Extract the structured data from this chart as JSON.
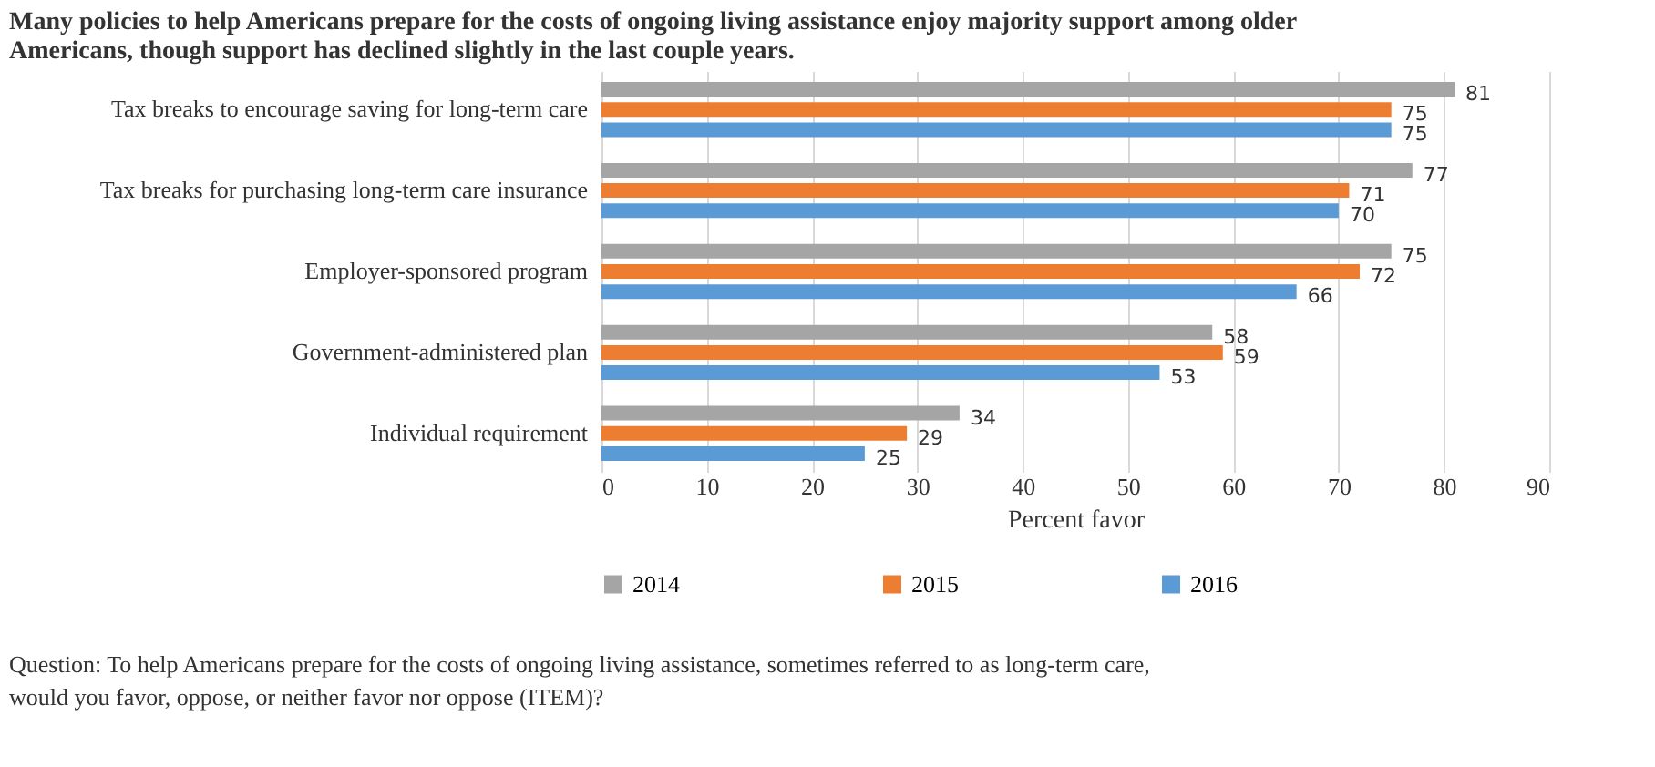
{
  "chart_data": {
    "type": "bar",
    "orientation": "horizontal",
    "title": "Many policies to help Americans prepare for the costs of ongoing living assistance enjoy majority support among older Americans, though support has declined slightly in the last couple years.",
    "categories": [
      "Tax breaks to encourage saving for long-term care",
      "Tax breaks for purchasing long-term care insurance",
      "Employer-sponsored program",
      "Government-administered plan",
      "Individual requirement"
    ],
    "series": [
      {
        "name": "2014",
        "color": "#a5a5a5",
        "values": [
          81,
          77,
          75,
          58,
          34
        ]
      },
      {
        "name": "2015",
        "color": "#ed7d31",
        "values": [
          75,
          71,
          72,
          59,
          29
        ]
      },
      {
        "name": "2016",
        "color": "#5b9bd5",
        "values": [
          75,
          70,
          66,
          53,
          25
        ]
      }
    ],
    "xlabel": "Percent favor",
    "xlim": [
      0,
      90
    ],
    "xticks": [
      0,
      10,
      20,
      30,
      40,
      50,
      60,
      70,
      80,
      90
    ],
    "grid": "x",
    "legend": "bottom",
    "data_labels": true,
    "annotations": [
      "Question: To help Americans prepare for the costs of ongoing living assistance, sometimes referred to as long-term care, would you favor, oppose, or neither favor nor oppose (ITEM)?"
    ]
  }
}
